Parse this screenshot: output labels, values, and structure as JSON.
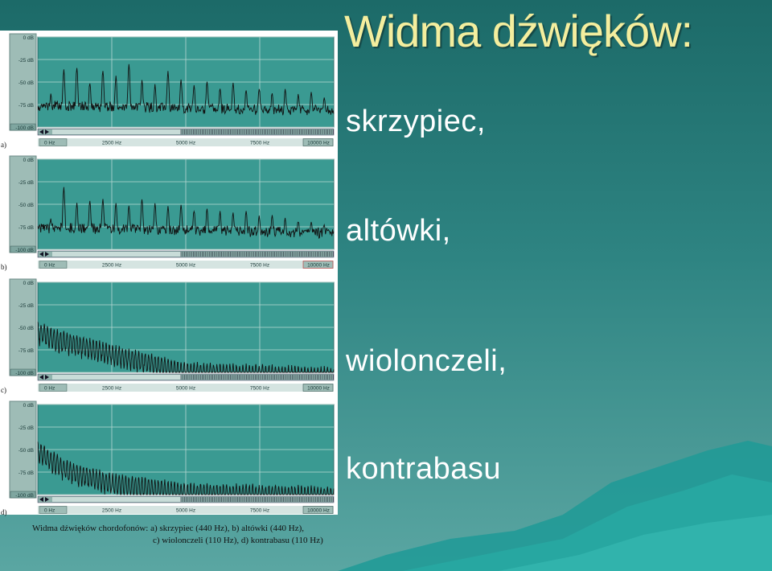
{
  "title": "Widma dźwięków:",
  "labels": [
    "skrzypiec,",
    "altówki,",
    "wiolonczeli,",
    "kontrabasu"
  ],
  "caption": {
    "line1": "Widma dźwięków chordofonów: a) skrzypiec (440 Hz), b) altówki (440 Hz),",
    "line2": "c) wiolonczeli (110 Hz), d) kontrabasu (110 Hz)"
  },
  "colors": {
    "background_top": "#1c6a68",
    "background_bottom": "#5aa6a2",
    "title": "#f4ee9e",
    "labels": "#ffffff",
    "plot_bg": "#3a9a92",
    "grid": "#b8d8d2",
    "trace": "#111111"
  },
  "chart_data": [
    {
      "type": "line",
      "panel": "a)",
      "fundamental_hz": 440,
      "y_ticks": [
        "0 dB",
        "-25 dB",
        "-50 dB",
        "-75 dB",
        "-100 dB"
      ],
      "x_ticks": [
        "0 Hz",
        "2500 Hz",
        "5000 Hz",
        "7500 Hz",
        "10000 Hz"
      ],
      "xlim": [
        0,
        10000
      ],
      "ylim": [
        -100,
        0
      ],
      "peaks_db": [
        -65,
        -38,
        -35,
        -52,
        -38,
        -46,
        -32,
        -50,
        -55,
        -40,
        -48,
        -55,
        -50,
        -58,
        -52,
        -60,
        -58,
        -63,
        -60,
        -65,
        -62,
        -68,
        -72
      ]
    },
    {
      "type": "line",
      "panel": "b)",
      "fundamental_hz": 440,
      "y_ticks": [
        "0 dB",
        "-25 dB",
        "-50 dB",
        "-75 dB",
        "-100 dB"
      ],
      "x_ticks": [
        "0 Hz",
        "2500 Hz",
        "5000 Hz",
        "7500 Hz",
        "10000 Hz"
      ],
      "xlim": [
        0,
        10000
      ],
      "ylim": [
        -100,
        0
      ],
      "peaks_db": [
        -68,
        -32,
        -50,
        -47,
        -45,
        -50,
        -52,
        -45,
        -50,
        -55,
        -52,
        -58,
        -56,
        -60,
        -62,
        -60,
        -65,
        -64,
        -68,
        -70,
        -72,
        -74,
        -76
      ]
    },
    {
      "type": "line",
      "panel": "c)",
      "fundamental_hz": 110,
      "y_ticks": [
        "0 dB",
        "-25 dB",
        "-50 dB",
        "-75 dB",
        "-100 dB"
      ],
      "x_ticks": [
        "0 Hz",
        "2500 Hz",
        "5000 Hz",
        "7500 Hz",
        "10000 Hz"
      ],
      "xlim": [
        0,
        10000
      ],
      "ylim": [
        -100,
        0
      ],
      "envelope_db": [
        [
          0,
          -45
        ],
        [
          800,
          -55
        ],
        [
          2500,
          -70
        ],
        [
          3500,
          -78
        ],
        [
          5000,
          -90
        ],
        [
          10000,
          -95
        ]
      ]
    },
    {
      "type": "line",
      "panel": "d)",
      "fundamental_hz": 110,
      "y_ticks": [
        "0 dB",
        "-25 dB",
        "-50 dB",
        "-75 dB",
        "-100 dB"
      ],
      "x_ticks": [
        "0 Hz",
        "2500 Hz",
        "5000 Hz",
        "7500 Hz",
        "10000 Hz"
      ],
      "xlim": [
        0,
        10000
      ],
      "ylim": [
        -100,
        0
      ],
      "envelope_db": [
        [
          0,
          -42
        ],
        [
          900,
          -62
        ],
        [
          2500,
          -78
        ],
        [
          5000,
          -88
        ],
        [
          10000,
          -92
        ]
      ]
    }
  ]
}
